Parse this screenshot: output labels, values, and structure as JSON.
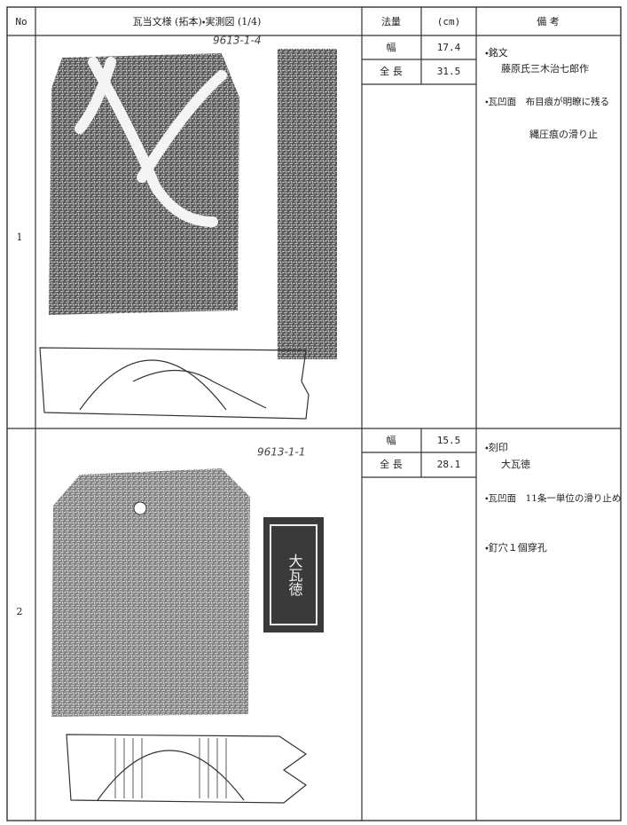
{
  "header": {
    "no": "No",
    "figure": "瓦当文様 (拓本)・実測図 (1/4)",
    "measure": "法量",
    "unit": "(cm)",
    "remarks": "備 考"
  },
  "rows": [
    {
      "no": "1",
      "annotation": "9613-1-4",
      "width_label": "幅",
      "width": 17.4,
      "length_label": "全 長",
      "length": 31.5,
      "remarks": [
        "・銘文",
        "藤原氏三木治七郎作",
        "・瓦凹面　布目痕が明瞭に残る",
        "縄圧痕の滑り止"
      ]
    },
    {
      "no": "2",
      "annotation": "9613-1-1",
      "stamp": "大瓦徳",
      "width_label": "幅",
      "width": 15.5,
      "length_label": "全 長",
      "length": 28.1,
      "remarks": [
        "・刻印",
        "大瓦徳",
        "・瓦凹面　11条一単位の滑り止め",
        "・釘穴１個穿孔"
      ]
    }
  ]
}
